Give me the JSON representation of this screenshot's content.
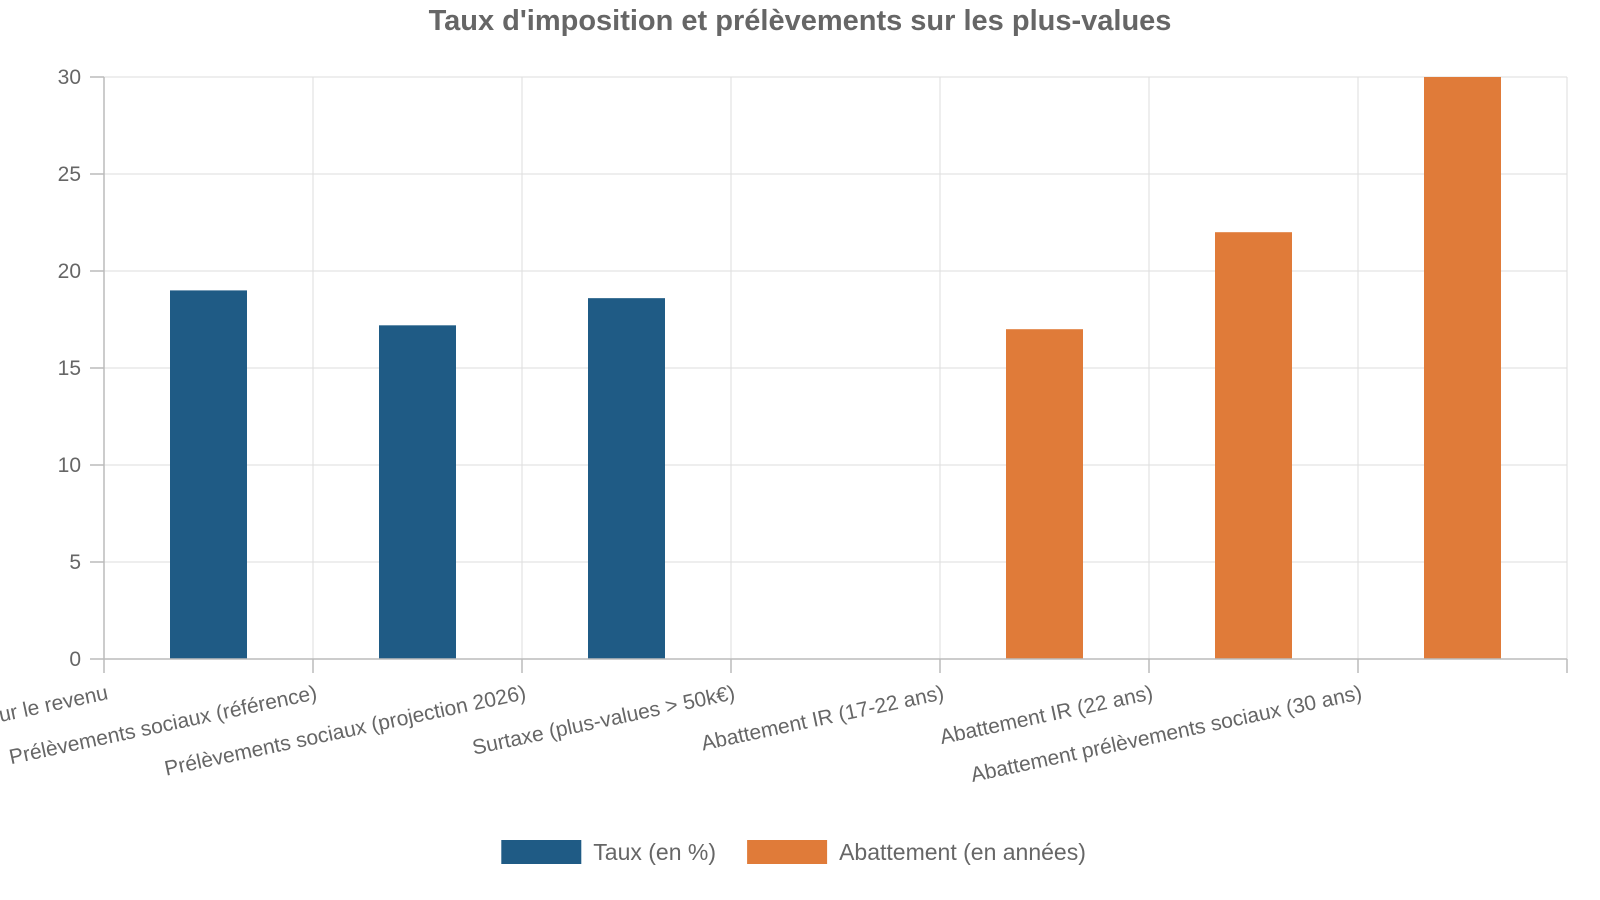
{
  "chart_data": {
    "type": "bar",
    "title": "Taux d'imposition et prélèvements sur les plus-values",
    "xlabel": "",
    "ylabel": "",
    "categories": [
      "Impôt sur le revenu",
      "Prélèvements sociaux (référence)",
      "Prélèvements sociaux (projection 2026)",
      "Surtaxe (plus-values > 50k€)",
      "Abattement IR (17-22 ans)",
      "Abattement IR (22 ans)",
      "Abattement prélèvements sociaux (30 ans)"
    ],
    "series": [
      {
        "name": "Taux (en %)",
        "color": "#1f5b85",
        "values": [
          19,
          17.2,
          18.6,
          null,
          null,
          null,
          null
        ]
      },
      {
        "name": "Abattement (en années)",
        "color": "#e07b39",
        "values": [
          null,
          null,
          null,
          null,
          17,
          22,
          30
        ]
      }
    ],
    "ylim": [
      0,
      30
    ],
    "yticks": [
      0,
      5,
      10,
      15,
      20,
      25,
      30
    ],
    "grid": true,
    "legend_position": "bottom"
  }
}
